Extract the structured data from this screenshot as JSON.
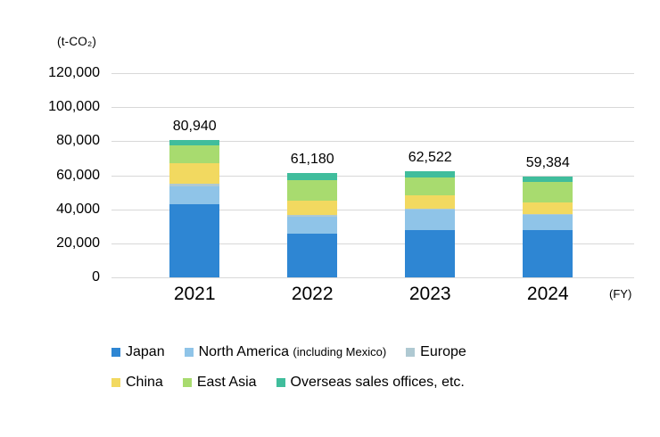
{
  "chart_data": {
    "type": "bar",
    "stacked": true,
    "title": "",
    "ylabel_unit": "(t-CO₂)",
    "xlabel_unit": "(FY)",
    "categories": [
      "2021",
      "2022",
      "2023",
      "2024"
    ],
    "series": [
      {
        "name": "Japan",
        "color": "#2E86D3",
        "values": [
          43200,
          25500,
          27900,
          27600
        ]
      },
      {
        "name": "North America (including Mexico)",
        "color": "#8FC4E8",
        "values": [
          10500,
          10400,
          12000,
          9200
        ]
      },
      {
        "name": "Europe",
        "color": "#AFC9D2",
        "values": [
          1440,
          600,
          520,
          500
        ]
      },
      {
        "name": "China",
        "color": "#F2D960",
        "values": [
          12100,
          8700,
          8050,
          6750
        ]
      },
      {
        "name": "East Asia",
        "color": "#A8DB6F",
        "values": [
          10100,
          11900,
          10200,
          12250
        ]
      },
      {
        "name": "Overseas sales offices, etc.",
        "color": "#40BD9C",
        "values": [
          3600,
          4080,
          3852,
          3084
        ]
      }
    ],
    "totals": [
      80940,
      61180,
      62522,
      59384
    ],
    "totals_formatted": [
      "80,940",
      "61,180",
      "62,522",
      "59,384"
    ],
    "y_ticks": [
      "120,000",
      "100,000",
      "80,000",
      "60,000",
      "40,000",
      "20,000",
      "0"
    ],
    "ylim": [
      0,
      120000
    ],
    "grid": true,
    "legend_position": "bottom"
  },
  "legend": {
    "rows": [
      [
        {
          "label": "Japan",
          "color": "#2E86D3"
        },
        {
          "label": "North America",
          "sub": "(including Mexico)",
          "color": "#8FC4E8"
        },
        {
          "label": "Europe",
          "color": "#AFC9D2"
        }
      ],
      [
        {
          "label": "China",
          "color": "#F2D960"
        },
        {
          "label": "East Asia",
          "color": "#A8DB6F"
        },
        {
          "label": "Overseas sales offices, etc.",
          "color": "#40BD9C"
        }
      ]
    ]
  }
}
